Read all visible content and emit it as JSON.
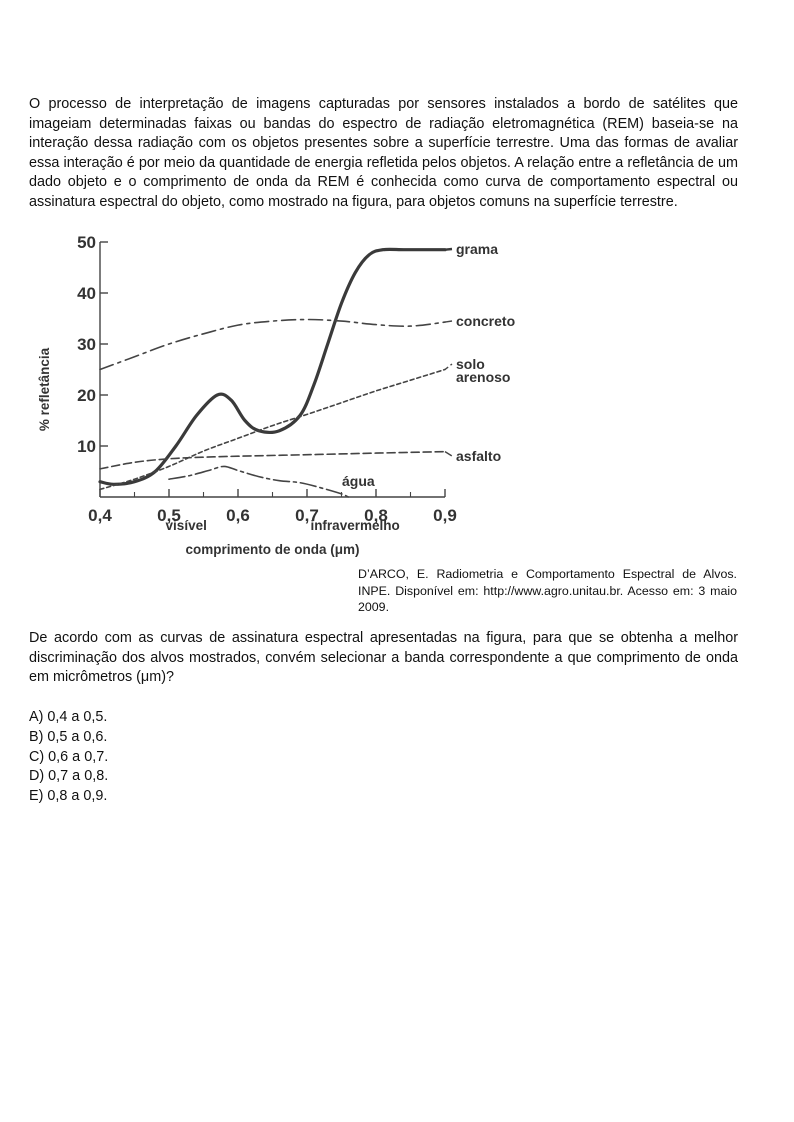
{
  "intro": "O processo de interpretação de imagens capturadas por sensores instalados a bordo de satélites que imageiam determinadas faixas ou bandas do espectro de radiação eletromagnética (REM) baseia-se na interação dessa radiação com os objetos presentes sobre a superfície terrestre. Uma das formas de avaliar essa interação é por meio da quantidade de energia refletida pelos objetos. A relação entre a refletância de um dado objeto e o comprimento de onda da REM é conhecida como curva de comportamento espectral ou assinatura espectral do objeto, como mostrado na figura, para objetos comuns na superfície terrestre.",
  "citation": "D’ARCO, E. Radiometria e Comportamento Espectral de Alvos. INPE. Disponível em: http://www.agro.unitau.br. Acesso em: 3 maio 2009.",
  "question": "De acordo com as curvas de assinatura espectral apresentadas na figura, para que se obtenha a melhor discriminação dos alvos mostrados, convém selecionar a banda correspondente a que comprimento de onda em micrômetros (μm)?",
  "options": [
    "A) 0,4 a 0,5.",
    "B) 0,5 a 0,6.",
    "C) 0,6 a 0,7.",
    "D) 0,7 a 0,8.",
    "E) 0,8 a 0,9."
  ],
  "chart_data": {
    "type": "line",
    "title": "",
    "xlabel": "comprimento de onda (μm)",
    "ylabel": "% refletância",
    "xlim": [
      0.4,
      0.9
    ],
    "ylim": [
      0,
      50
    ],
    "x_ticks": [
      "0,4",
      "0,5",
      "0,6",
      "0,7",
      "0,8",
      "0,9"
    ],
    "y_ticks": [
      "10",
      "20",
      "30",
      "40",
      "50"
    ],
    "region_labels": [
      "visível",
      "infravermelho"
    ],
    "series": [
      {
        "name": "grama",
        "style": "solid",
        "x": [
          0.4,
          0.42,
          0.45,
          0.48,
          0.51,
          0.54,
          0.57,
          0.59,
          0.61,
          0.63,
          0.66,
          0.69,
          0.71,
          0.73,
          0.75,
          0.77,
          0.79,
          0.81,
          0.84,
          0.87,
          0.9
        ],
        "y": [
          3,
          2.5,
          3,
          5,
          10,
          16,
          20,
          19,
          15,
          13,
          13,
          16,
          22,
          30,
          38,
          44,
          47.5,
          48.5,
          48.5,
          48.5,
          48.5
        ]
      },
      {
        "name": "concreto",
        "style": "dash-dot",
        "x": [
          0.4,
          0.45,
          0.5,
          0.55,
          0.6,
          0.65,
          0.7,
          0.75,
          0.8,
          0.85,
          0.9
        ],
        "y": [
          25,
          27.5,
          30,
          32,
          33.7,
          34.5,
          34.8,
          34.5,
          33.8,
          33.5,
          34.3
        ]
      },
      {
        "name": "solo arenoso",
        "style": "dotted",
        "x": [
          0.4,
          0.45,
          0.5,
          0.55,
          0.6,
          0.65,
          0.7,
          0.75,
          0.8,
          0.85,
          0.9
        ],
        "y": [
          1.5,
          3.5,
          6,
          9,
          11.5,
          14,
          16.2,
          18.5,
          20.8,
          22.9,
          25
        ]
      },
      {
        "name": "asfalto",
        "style": "dashed",
        "x": [
          0.4,
          0.45,
          0.5,
          0.55,
          0.6,
          0.7,
          0.8,
          0.9
        ],
        "y": [
          5.5,
          6.8,
          7.5,
          7.8,
          8,
          8.3,
          8.6,
          8.9
        ]
      },
      {
        "name": "água",
        "style": "long-dash-dot",
        "x": [
          0.5,
          0.53,
          0.56,
          0.58,
          0.6,
          0.63,
          0.66,
          0.69,
          0.72,
          0.75,
          0.76
        ],
        "y": [
          3.5,
          4.2,
          5.3,
          6,
          5.2,
          4,
          3.2,
          2.8,
          1.8,
          0.6,
          0
        ]
      }
    ],
    "grid": false,
    "legend": "direct labels at right end of curves"
  }
}
